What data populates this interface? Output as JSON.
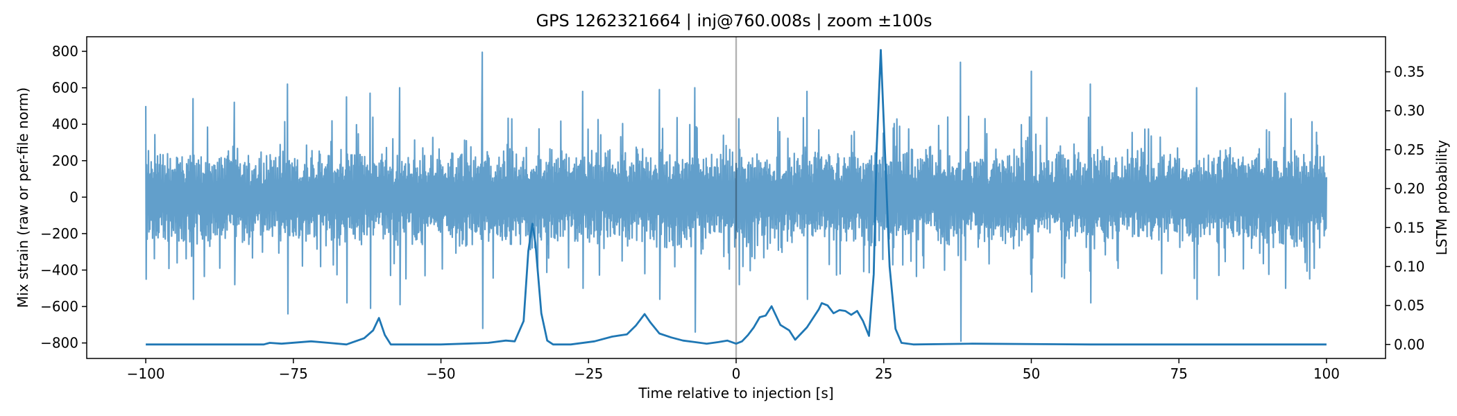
{
  "chart_data": {
    "type": "line",
    "title": "GPS 1262321664 | inj@760.008s | zoom ±100s",
    "xlabel": "Time relative to injection [s]",
    "ylabel": "Mix strain (raw or per-file norm)",
    "y2label": "LSTM probability",
    "xlim": [
      -110,
      110
    ],
    "ylim": [
      -885,
      880
    ],
    "y2lim": [
      -0.018,
      0.395
    ],
    "xticks": [
      -100,
      -75,
      -50,
      -25,
      0,
      25,
      50,
      75,
      100
    ],
    "xtick_labels": [
      "−100",
      "−75",
      "−50",
      "−25",
      "0",
      "25",
      "50",
      "75",
      "100"
    ],
    "yticks": [
      -800,
      -600,
      -400,
      -200,
      0,
      200,
      400,
      600,
      800
    ],
    "ytick_labels": [
      "−800",
      "−600",
      "−400",
      "−200",
      "0",
      "200",
      "400",
      "600",
      "800"
    ],
    "y2ticks": [
      0.0,
      0.05,
      0.1,
      0.15,
      0.2,
      0.25,
      0.3,
      0.35
    ],
    "y2tick_labels": [
      "0.00",
      "0.05",
      "0.10",
      "0.15",
      "0.20",
      "0.25",
      "0.30",
      "0.35"
    ],
    "injection_time": 0,
    "series": [
      {
        "name": "Mix strain",
        "axis": "left",
        "color": "#629fcb",
        "x_range": [
          -100,
          100
        ],
        "typical_envelope": [
          -250,
          300
        ],
        "spikes": [
          {
            "x": -100,
            "max": 500,
            "min": -450
          },
          {
            "x": -92,
            "max": 540,
            "min": -560
          },
          {
            "x": -85,
            "max": 520,
            "min": -480
          },
          {
            "x": -76,
            "max": 620,
            "min": -640
          },
          {
            "x": -66,
            "max": 550,
            "min": -580
          },
          {
            "x": -62,
            "max": 570,
            "min": -610
          },
          {
            "x": -57,
            "max": 600,
            "min": -590
          },
          {
            "x": -43,
            "max": 795,
            "min": -720
          },
          {
            "x": -26,
            "max": 580,
            "min": -500
          },
          {
            "x": -13,
            "max": 590,
            "min": -560
          },
          {
            "x": -7,
            "max": 600,
            "min": -740
          },
          {
            "x": 0.5,
            "max": 430,
            "min": -480
          },
          {
            "x": 12,
            "max": 580,
            "min": -560
          },
          {
            "x": 38,
            "max": 740,
            "min": -790
          },
          {
            "x": 50,
            "max": 690,
            "min": -520
          },
          {
            "x": 60,
            "max": 620,
            "min": -580
          },
          {
            "x": 78,
            "max": 600,
            "min": -560
          },
          {
            "x": 93,
            "max": 570,
            "min": -500
          }
        ]
      },
      {
        "name": "LSTM probability",
        "axis": "right",
        "color": "#1f77b4",
        "x": [
          -100,
          -80,
          -79,
          -77,
          -72,
          -69,
          -66,
          -63,
          -61.5,
          -60.5,
          -59.5,
          -58.5,
          -50,
          -46,
          -42,
          -39,
          -37.5,
          -36,
          -35.2,
          -34.5,
          -34,
          -33,
          -32,
          -31,
          -28,
          -24,
          -21,
          -18.5,
          -17,
          -15.5,
          -14.5,
          -13,
          -11,
          -9,
          -7,
          -5,
          -3,
          -1.5,
          0,
          1,
          2,
          3,
          4,
          5,
          6,
          7.5,
          9,
          10,
          12,
          14,
          14.5,
          15.5,
          16.5,
          17.5,
          18.5,
          19.5,
          20.5,
          21.5,
          22.5,
          23.3,
          23.8,
          24.5,
          25.2,
          26,
          27,
          28,
          30,
          40,
          60,
          80,
          100
        ],
        "y": [
          0.0,
          0.0,
          0.002,
          0.001,
          0.004,
          0.002,
          0.0,
          0.008,
          0.018,
          0.034,
          0.012,
          0.0,
          0.0,
          0.001,
          0.002,
          0.005,
          0.004,
          0.03,
          0.12,
          0.155,
          0.13,
          0.04,
          0.005,
          0.0,
          0.0,
          0.004,
          0.01,
          0.013,
          0.024,
          0.039,
          0.028,
          0.014,
          0.009,
          0.005,
          0.003,
          0.001,
          0.003,
          0.005,
          0.001,
          0.004,
          0.012,
          0.022,
          0.035,
          0.037,
          0.049,
          0.025,
          0.018,
          0.006,
          0.022,
          0.045,
          0.053,
          0.05,
          0.04,
          0.044,
          0.043,
          0.038,
          0.043,
          0.03,
          0.011,
          0.09,
          0.25,
          0.378,
          0.25,
          0.1,
          0.02,
          0.002,
          0.0,
          0.001,
          0.0,
          0.0,
          0.0
        ]
      }
    ]
  }
}
